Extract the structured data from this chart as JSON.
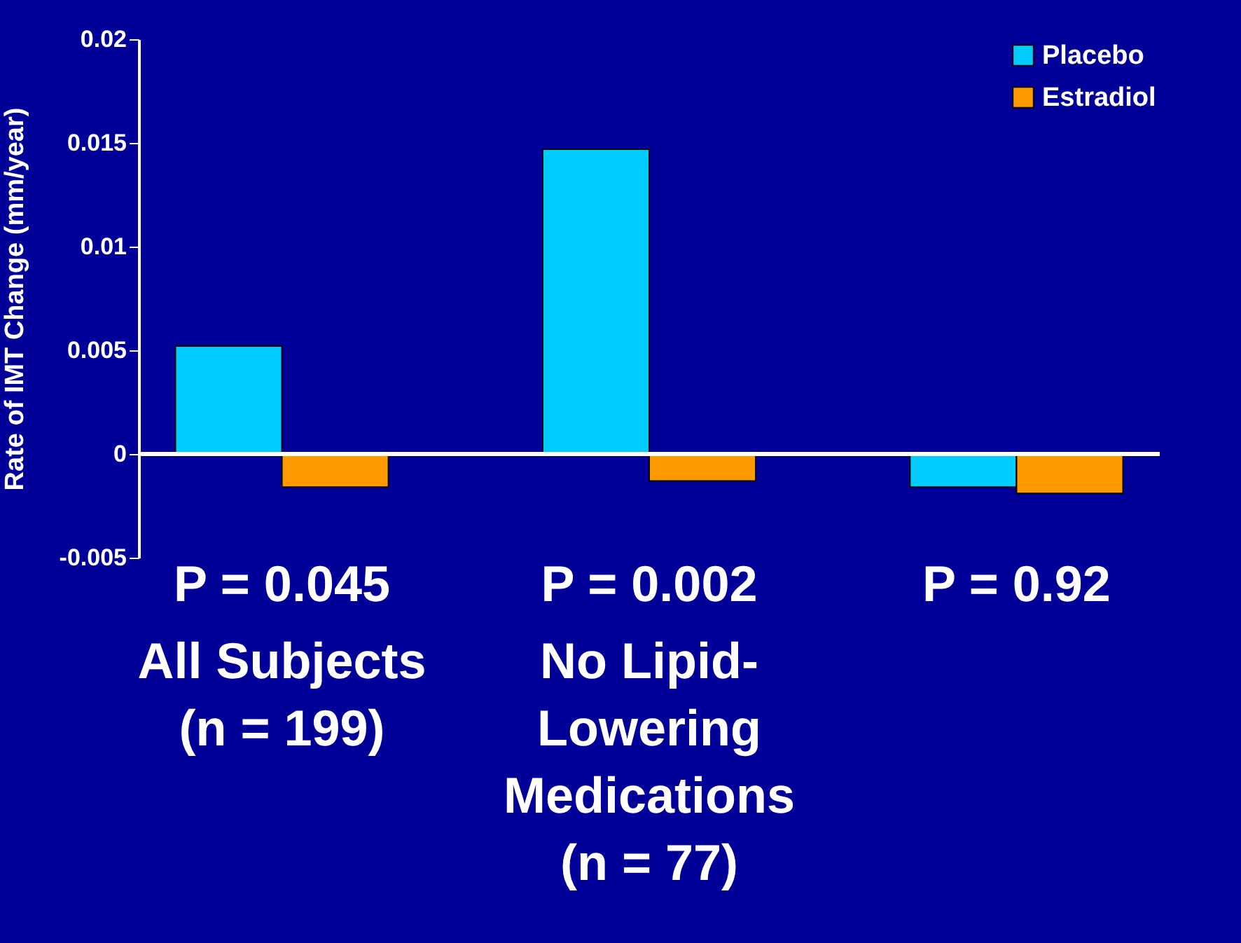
{
  "chart_data": {
    "type": "bar",
    "ylabel": "Rate of IMT Change (mm/year)",
    "categories": [
      "All Subjects\n(n = 199)",
      "No Lipid-Lowering\nMedications\n(n = 77)",
      null
    ],
    "series": [
      {
        "name": "Placebo",
        "color": "#00ccff",
        "values": [
          0.0052,
          0.0147,
          -0.0016
        ]
      },
      {
        "name": "Estradiol",
        "color": "#ff9900",
        "values": [
          -0.0016,
          -0.0013,
          -0.0019
        ]
      }
    ],
    "ylim": [
      -0.005,
      0.02
    ],
    "yticks": [
      -0.005,
      0,
      0.005,
      0.01,
      0.015,
      0.02
    ],
    "annotations": [
      "P = 0.045",
      "P = 0.002",
      "P = 0.92"
    ],
    "ref_lines": [
      {
        "axis": "y",
        "value": 0
      }
    ],
    "legend": "top right",
    "grid": false
  }
}
